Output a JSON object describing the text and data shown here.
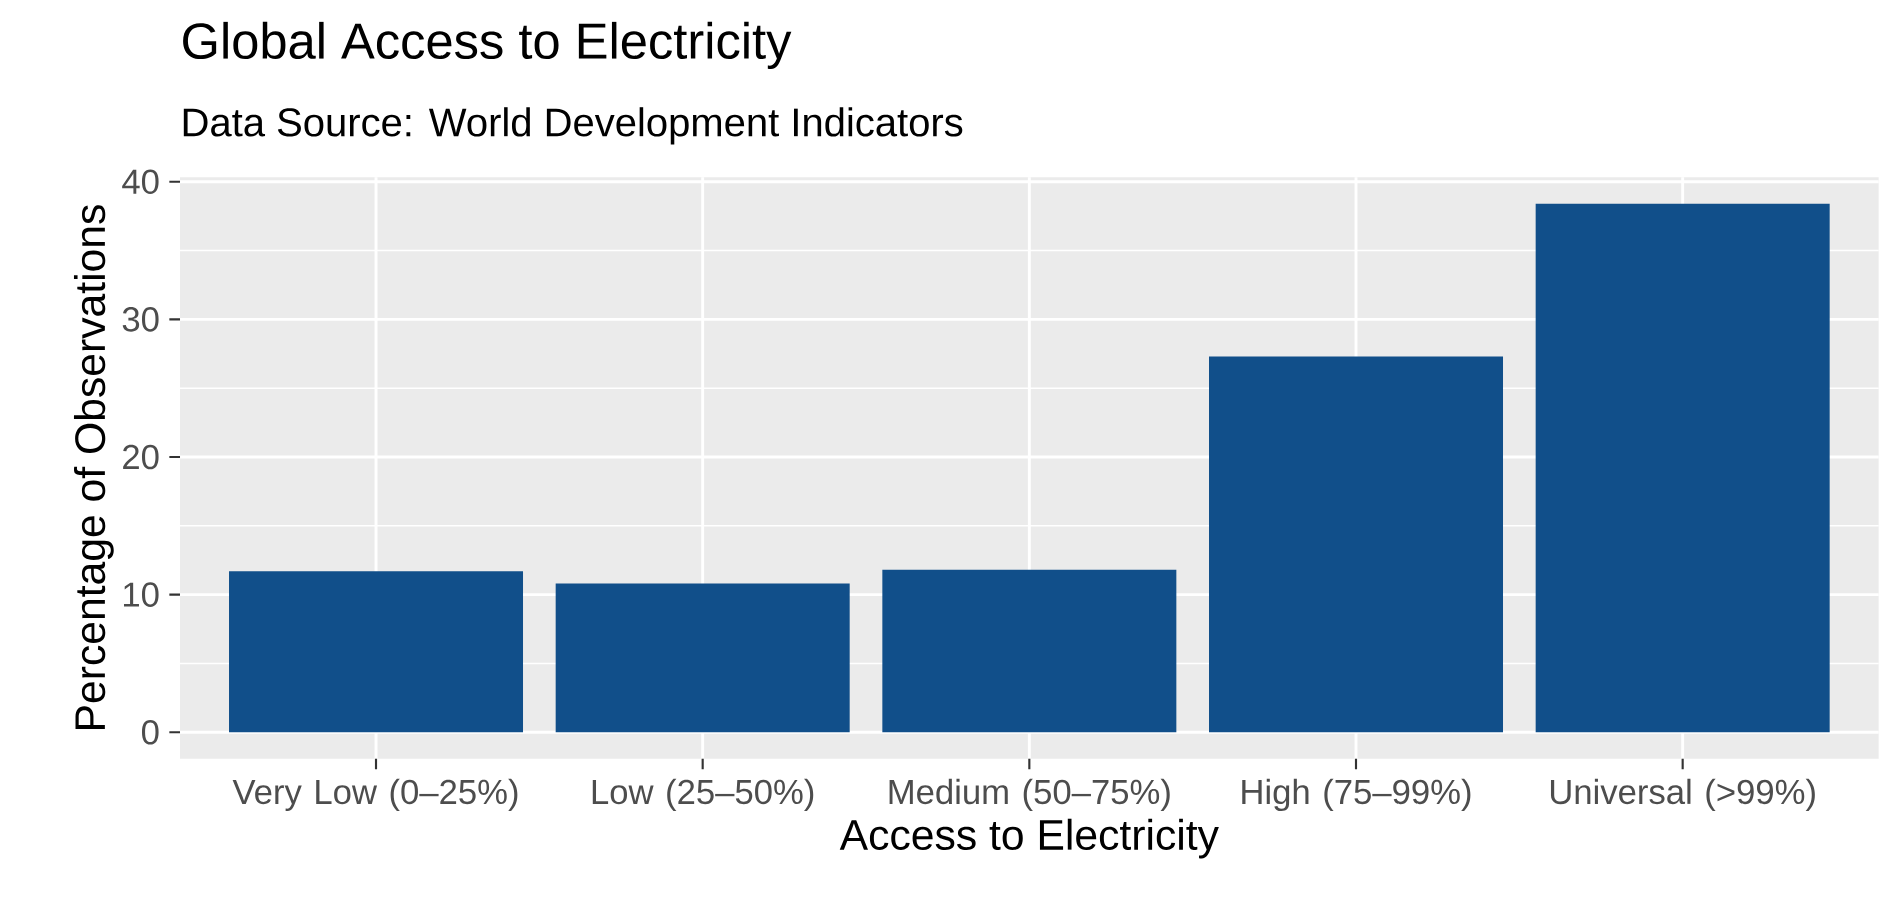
{
  "chart_data": {
    "type": "bar",
    "title": "Global Access to Electricity",
    "subtitle": "Data Source: World Development Indicators",
    "xlabel": "Access to Electricity",
    "ylabel": "Percentage of Observations",
    "categories": [
      "Very Low (0–25%)",
      "Low (25–50%)",
      "Medium (50–75%)",
      "High (75–99%)",
      "Universal (>99%)"
    ],
    "values": [
      11.7,
      10.8,
      11.8,
      27.3,
      38.4
    ],
    "color": "#114f8a",
    "ylim": [
      -1.92,
      40.32
    ],
    "yticks": [
      0,
      10,
      20,
      30,
      40
    ],
    "grid": true
  }
}
